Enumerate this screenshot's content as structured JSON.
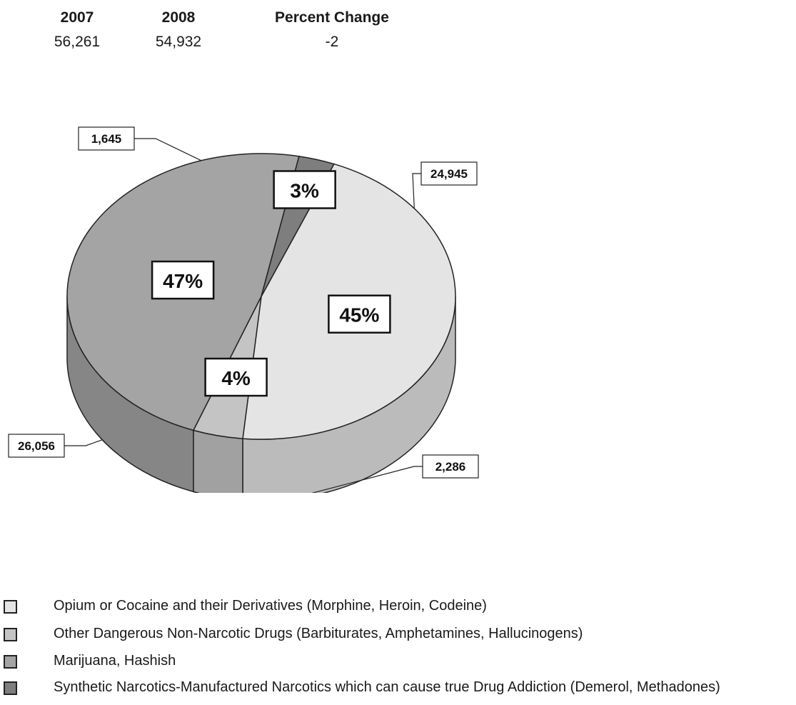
{
  "stats": {
    "columns": [
      {
        "header": "2007",
        "value": "56,261"
      },
      {
        "header": "2008",
        "value": "54,932"
      },
      {
        "header": "Percent Change",
        "value": "-2"
      }
    ]
  },
  "chart_data": {
    "type": "pie",
    "title": "",
    "slices": [
      {
        "label": "Opium or Cocaine and their Derivatives (Morphine, Heroin, Codeine)",
        "value": 24945,
        "percent_label": "45%",
        "value_label": "24,945",
        "color": "#e4e4e4"
      },
      {
        "label": "Other Dangerous Non-Narcotic Drugs (Barbiturates, Amphetamines, Hallucinogens)",
        "value": 2286,
        "percent_label": "4%",
        "value_label": "2,286",
        "color": "#c4c4c4"
      },
      {
        "label": "Marijuana, Hashish",
        "value": 26056,
        "percent_label": "47%",
        "value_label": "26,056",
        "color": "#a4a4a4"
      },
      {
        "label": "Synthetic Narcotics-Manufactured Narcotics which can cause true Drug Addiction (Demerol, Methadones)",
        "value": 1645,
        "percent_label": "3%",
        "value_label": "1,645",
        "color": "#7e7e7e"
      }
    ],
    "legend_position": "bottom-left"
  }
}
